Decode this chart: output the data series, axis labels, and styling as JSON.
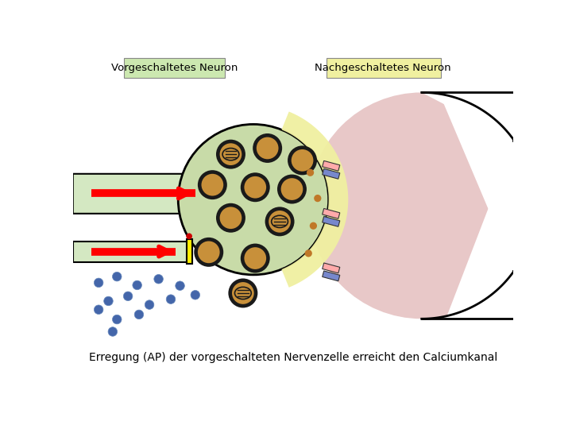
{
  "title_left": "Vorgeschaltetes Neuron",
  "title_right": "Nachgeschaltetes Neuron",
  "caption": "Erregung (AP) der vorgeschalteten Nervenzelle erreicht den Calciumkanal",
  "bg_color": "#ffffff",
  "axon_color": "#d4e8c2",
  "axon_border": "#000000",
  "terminal_color": "#c8dba8",
  "synaptic_cleft_color": "#f0f0a0",
  "postsynaptic_color": "#e8c8c8",
  "vesicle_inner_color": "#c8903a",
  "vesicle_border": "#1a1a1a",
  "ca_dot_color": "#c07828",
  "arrow_color": "#ff0000",
  "channel_pink": "#ffaaaa",
  "channel_blue": "#7788cc",
  "neurotransmitter_color": "#4466aa",
  "calcium_channel_yellow": "#ffee00",
  "calcium_channel_red": "#cc0000"
}
